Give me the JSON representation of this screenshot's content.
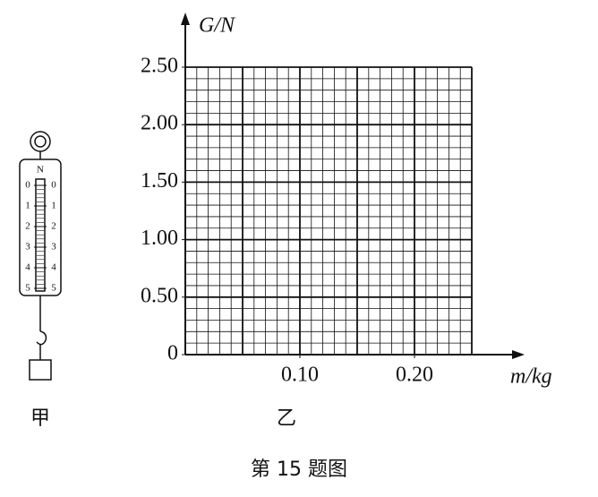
{
  "chart_data": {
    "type": "grid",
    "caption": "第 15 题图",
    "figure_label": "乙",
    "x_label": "m/kg",
    "y_label": "G/N",
    "xlim": [
      0,
      0.25
    ],
    "ylim": [
      0,
      2.5
    ],
    "xticks": [
      {
        "value": 0.1,
        "label": "0.10"
      },
      {
        "value": 0.2,
        "label": "0.20"
      }
    ],
    "yticks": [
      0,
      {
        "value": 0.5,
        "label": "0.50"
      },
      {
        "value": 1,
        "label": "1.00"
      },
      {
        "value": 1.5,
        "label": "1.50"
      },
      {
        "value": 2,
        "label": "2.00"
      },
      {
        "value": 2.5,
        "label": "2.50"
      }
    ],
    "grid": true
  },
  "spring_scale": {
    "label": "甲",
    "unit": "N",
    "scale_left": [
      "0",
      "1",
      "2",
      "3",
      "4",
      "5"
    ],
    "scale_right": [
      "0",
      "1",
      "2",
      "3",
      "4",
      "5"
    ]
  }
}
